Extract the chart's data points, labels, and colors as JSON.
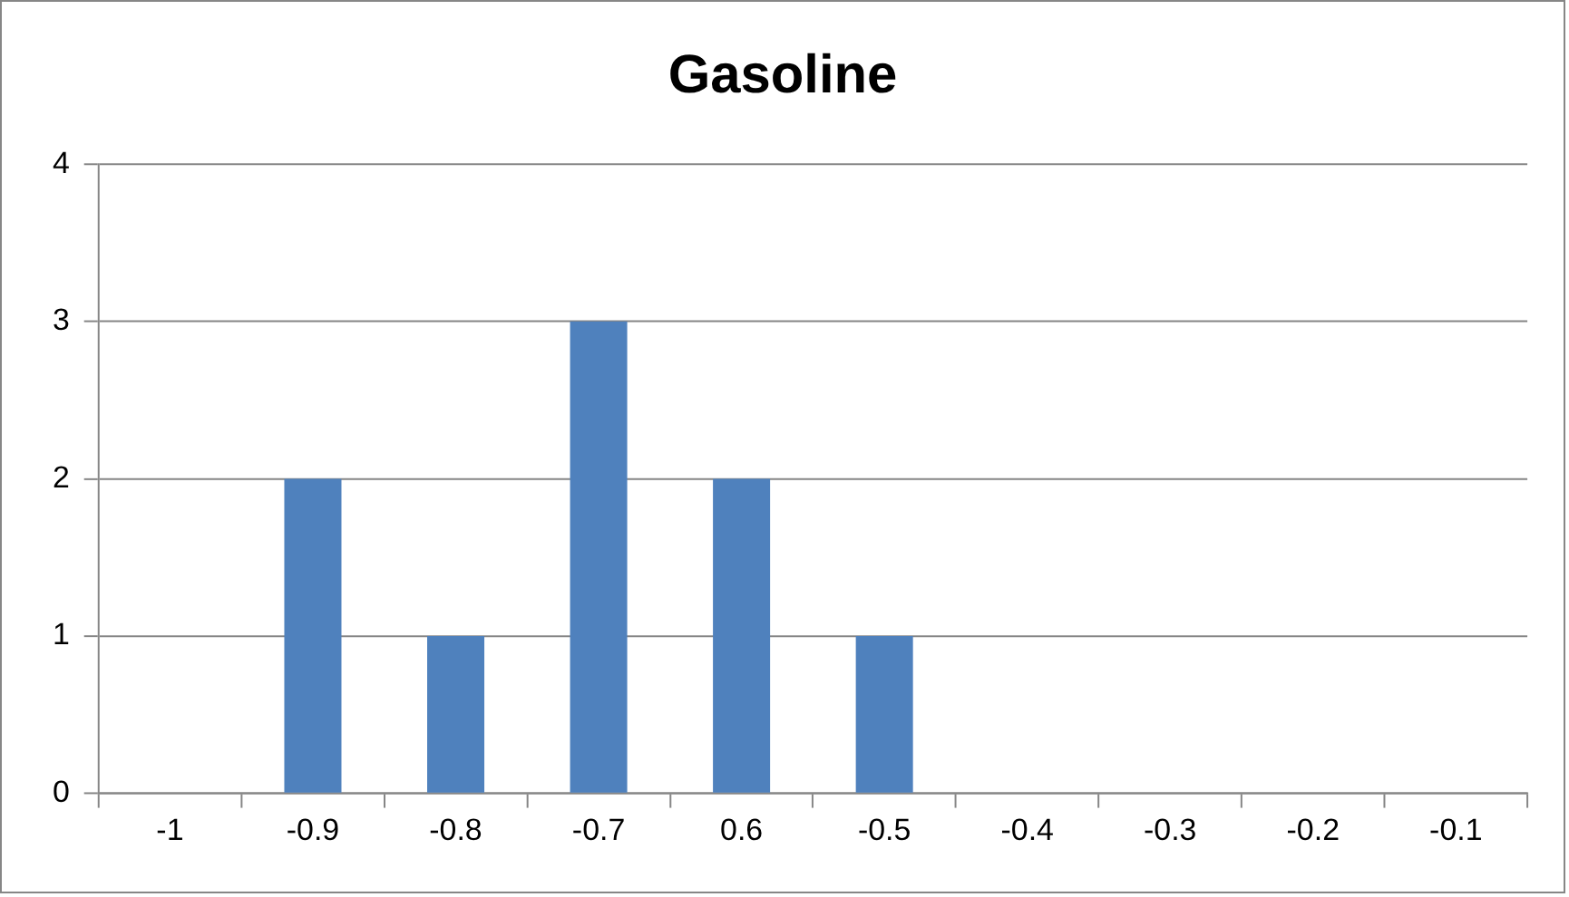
{
  "chart_data": {
    "type": "bar",
    "title": "Gasoline",
    "categories": [
      "-1",
      "-0.9",
      "-0.8",
      "-0.7",
      "0.6",
      "-0.5",
      "-0.4",
      "-0.3",
      "-0.2",
      "-0.1"
    ],
    "values": [
      0,
      2,
      1,
      3,
      2,
      1,
      0,
      0,
      0,
      0
    ],
    "color": "#4f81bd",
    "ylim": [
      0,
      4
    ],
    "yticks": [
      0,
      1,
      2,
      3,
      4
    ],
    "grid": "y",
    "legend": false
  }
}
